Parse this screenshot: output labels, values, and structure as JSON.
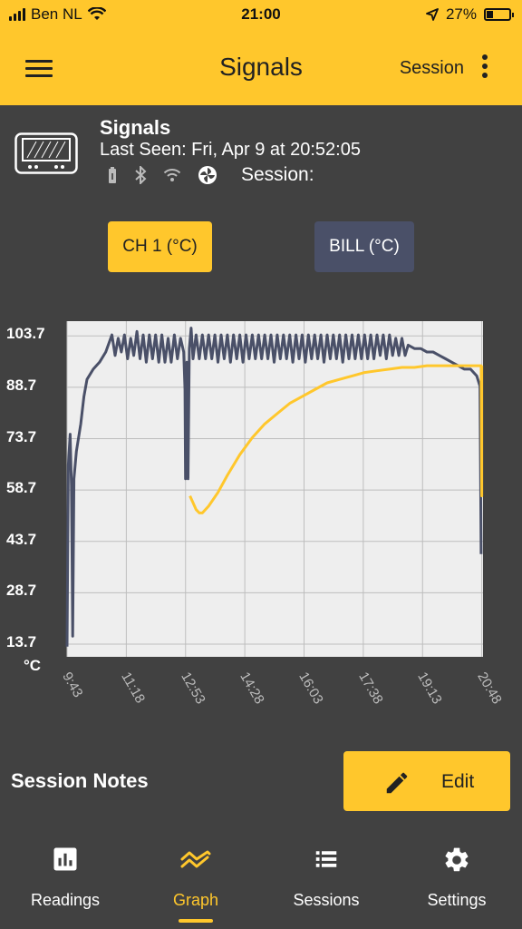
{
  "status_bar": {
    "carrier": "Ben NL",
    "time": "21:00",
    "battery": "27%",
    "battery_level": 0.27
  },
  "app_bar": {
    "title": "Signals",
    "session_label": "Session"
  },
  "device": {
    "name": "Signals",
    "last_seen": "Last Seen: Fri, Apr 9 at 20:52:05",
    "session_label": "Session:"
  },
  "channels": [
    {
      "label": "CH 1 (°C)"
    },
    {
      "label": "BILL (°C)"
    }
  ],
  "colors": {
    "accent": "#FFC72C",
    "channel_2": "#4A5068",
    "background": "#414141",
    "plot_bg": "#EEEEEE",
    "line_ch1": "#FFC72C",
    "line_bill": "#4A5068"
  },
  "chart_data": {
    "type": "line",
    "ylabel": "°C",
    "yticks": [
      "103.7",
      "88.7",
      "73.7",
      "58.7",
      "43.7",
      "28.7",
      "13.7"
    ],
    "ytick_values": [
      103.7,
      88.7,
      73.7,
      58.7,
      43.7,
      28.7,
      13.7
    ],
    "xticks": [
      "9:43",
      "11:18",
      "12:53",
      "14:28",
      "16:03",
      "17:38",
      "19:13",
      "20:48"
    ],
    "ylim": [
      10,
      108
    ],
    "xlim_minutes": [
      583,
      1250
    ],
    "grid": true,
    "series": [
      {
        "key": "bill",
        "color": "#4A5068",
        "points": [
          [
            "9:43",
            13
          ],
          [
            "9:45",
            66
          ],
          [
            "9:48",
            75
          ],
          [
            "9:50",
            60
          ],
          [
            "9:51",
            40
          ],
          [
            "9:52",
            16
          ],
          [
            "9:54",
            62
          ],
          [
            "9:58",
            70
          ],
          [
            "10:05",
            78
          ],
          [
            "10:10",
            86
          ],
          [
            "10:15",
            91
          ],
          [
            "10:25",
            94
          ],
          [
            "10:35",
            96
          ],
          [
            "10:45",
            99
          ],
          [
            "10:55",
            104
          ],
          [
            "11:00",
            98
          ],
          [
            "11:05",
            103
          ],
          [
            "11:10",
            99
          ],
          [
            "11:15",
            104
          ],
          [
            "11:20",
            97
          ],
          [
            "11:25",
            103
          ],
          [
            "11:30",
            98
          ],
          [
            "11:35",
            105
          ],
          [
            "11:40",
            97
          ],
          [
            "11:45",
            104
          ],
          [
            "11:50",
            96
          ],
          [
            "11:55",
            104
          ],
          [
            "12:00",
            97
          ],
          [
            "12:05",
            104
          ],
          [
            "12:10",
            96
          ],
          [
            "12:15",
            104
          ],
          [
            "12:20",
            96
          ],
          [
            "12:25",
            103
          ],
          [
            "12:30",
            96
          ],
          [
            "12:35",
            104
          ],
          [
            "12:40",
            97
          ],
          [
            "12:45",
            103
          ],
          [
            "12:50",
            99
          ],
          [
            "12:52",
            88
          ],
          [
            "12:53",
            62
          ],
          [
            "12:55",
            96
          ],
          [
            "12:57",
            62
          ],
          [
            "12:59",
            100
          ],
          [
            "13:02",
            106
          ],
          [
            "13:05",
            97
          ],
          [
            "13:10",
            104
          ],
          [
            "13:15",
            97
          ],
          [
            "13:20",
            104
          ],
          [
            "13:25",
            97
          ],
          [
            "13:30",
            104
          ],
          [
            "13:35",
            97
          ],
          [
            "13:40",
            104
          ],
          [
            "13:45",
            96
          ],
          [
            "13:50",
            104
          ],
          [
            "13:55",
            97
          ],
          [
            "14:00",
            104
          ],
          [
            "14:05",
            96
          ],
          [
            "14:10",
            104
          ],
          [
            "14:15",
            97
          ],
          [
            "14:20",
            104
          ],
          [
            "14:25",
            96
          ],
          [
            "14:30",
            104
          ],
          [
            "14:35",
            97
          ],
          [
            "14:40",
            104
          ],
          [
            "14:45",
            97
          ],
          [
            "14:50",
            104
          ],
          [
            "14:55",
            97
          ],
          [
            "15:00",
            104
          ],
          [
            "15:05",
            97
          ],
          [
            "15:10",
            104
          ],
          [
            "15:15",
            96
          ],
          [
            "15:20",
            104
          ],
          [
            "15:25",
            97
          ],
          [
            "15:30",
            104
          ],
          [
            "15:35",
            97
          ],
          [
            "15:40",
            104
          ],
          [
            "15:45",
            96
          ],
          [
            "15:50",
            104
          ],
          [
            "15:55",
            97
          ],
          [
            "16:00",
            104
          ],
          [
            "16:05",
            96
          ],
          [
            "16:10",
            104
          ],
          [
            "16:15",
            97
          ],
          [
            "16:20",
            104
          ],
          [
            "16:25",
            97
          ],
          [
            "16:30",
            104
          ],
          [
            "16:35",
            96
          ],
          [
            "16:40",
            104
          ],
          [
            "16:45",
            97
          ],
          [
            "16:50",
            104
          ],
          [
            "16:55",
            97
          ],
          [
            "17:00",
            104
          ],
          [
            "17:05",
            96
          ],
          [
            "17:10",
            104
          ],
          [
            "17:15",
            97
          ],
          [
            "17:20",
            104
          ],
          [
            "17:25",
            97
          ],
          [
            "17:30",
            104
          ],
          [
            "17:35",
            97
          ],
          [
            "17:40",
            104
          ],
          [
            "17:45",
            97
          ],
          [
            "17:50",
            104
          ],
          [
            "17:55",
            97
          ],
          [
            "18:00",
            104
          ],
          [
            "18:05",
            98
          ],
          [
            "18:10",
            104
          ],
          [
            "18:15",
            97
          ],
          [
            "18:20",
            104
          ],
          [
            "18:25",
            98
          ],
          [
            "18:30",
            103
          ],
          [
            "18:35",
            98
          ],
          [
            "18:40",
            103
          ],
          [
            "18:45",
            98
          ],
          [
            "18:50",
            101
          ],
          [
            "19:00",
            100
          ],
          [
            "19:10",
            100
          ],
          [
            "19:20",
            99
          ],
          [
            "19:30",
            99
          ],
          [
            "19:40",
            98
          ],
          [
            "19:50",
            97
          ],
          [
            "20:00",
            96
          ],
          [
            "20:10",
            95
          ],
          [
            "20:20",
            94
          ],
          [
            "20:30",
            94
          ],
          [
            "20:40",
            92
          ],
          [
            "20:45",
            89
          ],
          [
            "20:47",
            40
          ]
        ]
      },
      {
        "key": "ch1",
        "color": "#FFC72C",
        "points": [
          [
            "13:00",
            57
          ],
          [
            "13:05",
            55
          ],
          [
            "13:10",
            53
          ],
          [
            "13:15",
            52
          ],
          [
            "13:20",
            52
          ],
          [
            "13:30",
            54
          ],
          [
            "13:45",
            58
          ],
          [
            "14:00",
            63
          ],
          [
            "14:20",
            69
          ],
          [
            "14:40",
            74
          ],
          [
            "15:00",
            78
          ],
          [
            "15:20",
            81
          ],
          [
            "15:40",
            84
          ],
          [
            "16:00",
            86
          ],
          [
            "16:20",
            88
          ],
          [
            "16:40",
            90
          ],
          [
            "17:00",
            91
          ],
          [
            "17:20",
            92
          ],
          [
            "17:40",
            93
          ],
          [
            "18:00",
            93.5
          ],
          [
            "18:20",
            94
          ],
          [
            "18:40",
            94.5
          ],
          [
            "19:00",
            94.5
          ],
          [
            "19:20",
            95
          ],
          [
            "19:40",
            95
          ],
          [
            "20:00",
            95
          ],
          [
            "20:20",
            95
          ],
          [
            "20:40",
            95
          ],
          [
            "20:47",
            95
          ],
          [
            "20:48",
            57
          ],
          [
            "20:48",
            95
          ]
        ]
      }
    ]
  },
  "notes": {
    "title": "Session Notes",
    "edit_label": "Edit"
  },
  "nav": [
    {
      "label": "Readings",
      "icon": "bar-chart-icon"
    },
    {
      "label": "Graph",
      "icon": "trend-icon"
    },
    {
      "label": "Sessions",
      "icon": "list-icon"
    },
    {
      "label": "Settings",
      "icon": "gear-icon"
    }
  ]
}
